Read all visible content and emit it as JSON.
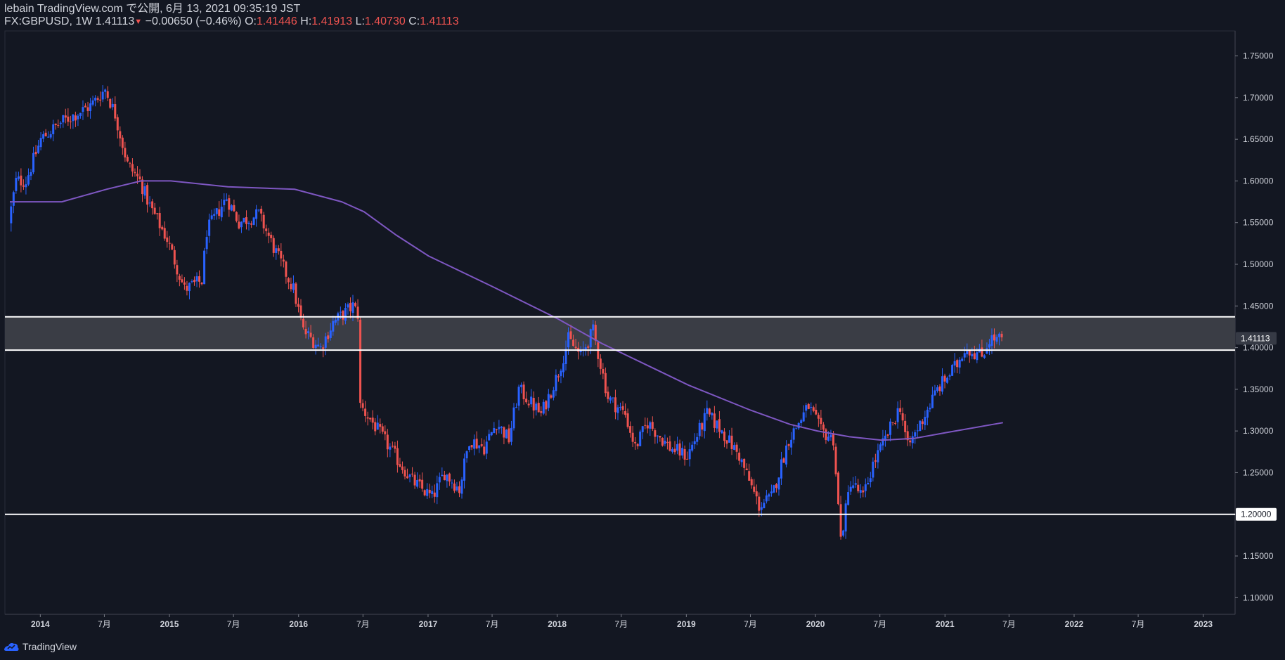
{
  "header": {
    "publish_line": "lebain TradingView.com で公開, 6月 13, 2021 09:35:19 JST",
    "symbol": "FX:GBPUSD, 1W",
    "last_price": "1.41113",
    "change": "−0.00650 (−0.46%)",
    "open_label": "O:",
    "open": "1.41446",
    "high_label": "H:",
    "high": "1.41913",
    "low_label": "L:",
    "low": "1.40730",
    "close_label": "C:",
    "close": "1.41113"
  },
  "footer": {
    "brand": "TradingView",
    "logo_icon": "tradingview-logo-icon"
  },
  "colors": {
    "background": "#131722",
    "up": "#2962ff",
    "down": "#ef5350",
    "ma": "#7e57c2",
    "zone": "#3a3d45",
    "level_line": "#ffffff",
    "text": "#d1d4dc"
  },
  "chart_data": {
    "type": "candlestick",
    "symbol": "FX:GBPUSD",
    "timeframe": "1W",
    "ylim": [
      1.08,
      1.78
    ],
    "y_ticks": [
      "1.75000",
      "1.70000",
      "1.65000",
      "1.60000",
      "1.55000",
      "1.50000",
      "1.45000",
      "1.40000",
      "1.35000",
      "1.30000",
      "1.25000",
      "1.20000",
      "1.15000",
      "1.10000"
    ],
    "x_ticks": [
      "2014",
      "7月",
      "2015",
      "7月",
      "2016",
      "7月",
      "2017",
      "7月",
      "2018",
      "7月",
      "2019",
      "7月",
      "2020",
      "7月",
      "2021",
      "7月",
      "2022",
      "7月",
      "2023"
    ],
    "price_labels": {
      "last": "1.41113",
      "support": "1.20000"
    },
    "levels": {
      "zone_top": 1.437,
      "zone_bottom": 1.397,
      "support": 1.2
    },
    "price_path": [
      [
        "2013-10-07",
        1.55
      ],
      [
        "2013-10-28",
        1.6
      ],
      [
        "2013-11-25",
        1.6
      ],
      [
        "2014-01-06",
        1.65
      ],
      [
        "2014-03-03",
        1.67
      ],
      [
        "2014-04-14",
        1.68
      ],
      [
        "2014-05-26",
        1.69
      ],
      [
        "2014-07-07",
        1.71
      ],
      [
        "2014-08-04",
        1.68
      ],
      [
        "2014-09-08",
        1.62
      ],
      [
        "2014-10-13",
        1.6
      ],
      [
        "2014-11-10",
        1.57
      ],
      [
        "2014-12-29",
        1.53
      ],
      [
        "2015-02-16",
        1.47
      ],
      [
        "2015-04-06",
        1.48
      ],
      [
        "2015-04-20",
        1.54
      ],
      [
        "2015-06-15",
        1.58
      ],
      [
        "2015-07-20",
        1.55
      ],
      [
        "2015-09-14",
        1.56
      ],
      [
        "2015-10-26",
        1.52
      ],
      [
        "2015-12-21",
        1.47
      ],
      [
        "2016-01-18",
        1.42
      ],
      [
        "2016-03-07",
        1.4
      ],
      [
        "2016-04-11",
        1.43
      ],
      [
        "2016-06-06",
        1.45
      ],
      [
        "2016-06-20",
        1.44
      ],
      [
        "2016-06-27",
        1.33
      ],
      [
        "2016-08-01",
        1.31
      ],
      [
        "2016-10-03",
        1.27
      ],
      [
        "2016-11-21",
        1.24
      ],
      [
        "2017-01-16",
        1.22
      ],
      [
        "2017-02-20",
        1.25
      ],
      [
        "2017-04-03",
        1.23
      ],
      [
        "2017-05-01",
        1.29
      ],
      [
        "2017-06-12",
        1.28
      ],
      [
        "2017-07-17",
        1.31
      ],
      [
        "2017-08-21",
        1.29
      ],
      [
        "2017-09-18",
        1.35
      ],
      [
        "2017-11-20",
        1.32
      ],
      [
        "2018-01-08",
        1.37
      ],
      [
        "2018-02-05",
        1.41
      ],
      [
        "2018-03-12",
        1.39
      ],
      [
        "2018-04-16",
        1.42
      ],
      [
        "2018-05-28",
        1.34
      ],
      [
        "2018-07-16",
        1.32
      ],
      [
        "2018-08-13",
        1.28
      ],
      [
        "2018-09-17",
        1.31
      ],
      [
        "2018-11-19",
        1.28
      ],
      [
        "2019-01-07",
        1.27
      ],
      [
        "2019-03-04",
        1.32
      ],
      [
        "2019-04-15",
        1.3
      ],
      [
        "2019-06-03",
        1.27
      ],
      [
        "2019-07-29",
        1.21
      ],
      [
        "2019-09-02",
        1.22
      ],
      [
        "2019-10-21",
        1.29
      ],
      [
        "2019-12-16",
        1.33
      ],
      [
        "2020-01-20",
        1.3
      ],
      [
        "2020-02-24",
        1.29
      ],
      [
        "2020-03-16",
        1.17
      ],
      [
        "2020-04-13",
        1.24
      ],
      [
        "2020-05-18",
        1.22
      ],
      [
        "2020-06-15",
        1.26
      ],
      [
        "2020-07-20",
        1.29
      ],
      [
        "2020-08-31",
        1.33
      ],
      [
        "2020-09-21",
        1.28
      ],
      [
        "2020-11-09",
        1.32
      ],
      [
        "2020-12-14",
        1.35
      ],
      [
        "2021-02-08",
        1.38
      ],
      [
        "2021-03-01",
        1.4
      ],
      [
        "2021-04-19",
        1.39
      ],
      [
        "2021-05-10",
        1.41
      ],
      [
        "2021-06-07",
        1.41
      ]
    ],
    "moving_average": [
      [
        "2013-10-07",
        1.575
      ],
      [
        "2014-03-03",
        1.575
      ],
      [
        "2014-07-07",
        1.59
      ],
      [
        "2014-10-13",
        1.6
      ],
      [
        "2015-01-05",
        1.6
      ],
      [
        "2015-06-15",
        1.593
      ],
      [
        "2015-12-21",
        1.59
      ],
      [
        "2016-05-02",
        1.575
      ],
      [
        "2016-07-04",
        1.563
      ],
      [
        "2016-10-03",
        1.535
      ],
      [
        "2017-01-02",
        1.51
      ],
      [
        "2017-07-03",
        1.473
      ],
      [
        "2018-01-01",
        1.435
      ],
      [
        "2018-05-07",
        1.405
      ],
      [
        "2018-10-01",
        1.375
      ],
      [
        "2019-01-07",
        1.355
      ],
      [
        "2019-07-01",
        1.325
      ],
      [
        "2019-10-21",
        1.308
      ],
      [
        "2020-01-06",
        1.3
      ],
      [
        "2020-04-06",
        1.293
      ],
      [
        "2020-07-06",
        1.289
      ],
      [
        "2020-10-05",
        1.291
      ],
      [
        "2021-01-04",
        1.298
      ],
      [
        "2021-06-14",
        1.31
      ]
    ]
  }
}
